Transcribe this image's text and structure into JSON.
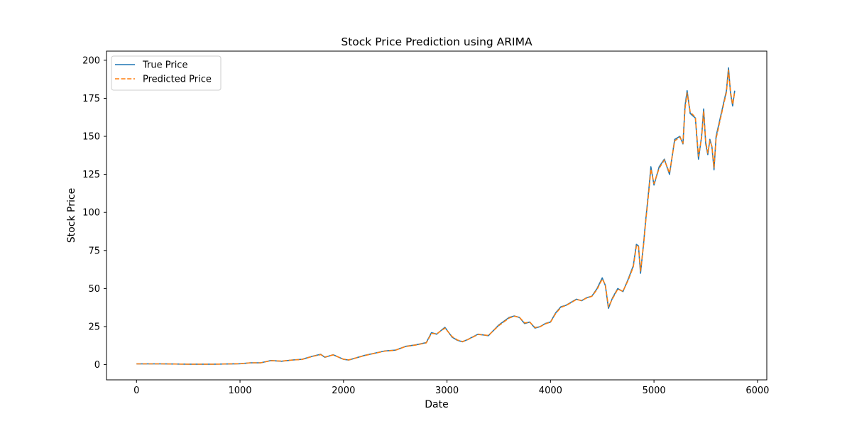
{
  "chart_data": {
    "type": "line",
    "title": "Stock Price Prediction using ARIMA",
    "xlabel": "Date",
    "ylabel": "Stock Price",
    "xlim": [
      -290,
      6090
    ],
    "ylim": [
      -10,
      206
    ],
    "xticks": [
      0,
      1000,
      2000,
      3000,
      4000,
      5000,
      6000
    ],
    "yticks": [
      0,
      25,
      50,
      75,
      100,
      125,
      150,
      175,
      200
    ],
    "grid": false,
    "legend_position": "top-left",
    "series": [
      {
        "name": "True Price",
        "color": "#1f77b4",
        "style": "solid",
        "x": [
          0,
          250,
          500,
          750,
          1000,
          1100,
          1200,
          1300,
          1400,
          1500,
          1600,
          1700,
          1780,
          1820,
          1900,
          2000,
          2050,
          2200,
          2300,
          2400,
          2500,
          2600,
          2700,
          2800,
          2850,
          2900,
          2980,
          3050,
          3100,
          3150,
          3200,
          3300,
          3400,
          3500,
          3600,
          3650,
          3700,
          3750,
          3800,
          3850,
          3900,
          3950,
          4000,
          4050,
          4100,
          4150,
          4200,
          4250,
          4300,
          4350,
          4400,
          4450,
          4500,
          4530,
          4560,
          4600,
          4650,
          4700,
          4750,
          4800,
          4830,
          4850,
          4870,
          4900,
          4920,
          4950,
          4970,
          5000,
          5050,
          5100,
          5150,
          5200,
          5250,
          5280,
          5300,
          5320,
          5350,
          5400,
          5430,
          5460,
          5480,
          5500,
          5520,
          5540,
          5560,
          5580,
          5600,
          5650,
          5700,
          5720,
          5740,
          5760,
          5780
        ],
        "y": [
          0.5,
          0.5,
          0.3,
          0.3,
          0.6,
          1.2,
          1.2,
          2.7,
          2.2,
          3.0,
          3.5,
          5.5,
          6.8,
          4.8,
          6.5,
          3.5,
          3.0,
          6.0,
          7.5,
          9.0,
          9.5,
          12.0,
          13.0,
          14.5,
          21.0,
          20.0,
          24.5,
          18.0,
          16.0,
          15.0,
          16.5,
          20.0,
          19.0,
          26.0,
          31.0,
          32.0,
          31.0,
          27.0,
          28.0,
          24.0,
          25.0,
          27.0,
          28.0,
          34.0,
          38.0,
          39.0,
          41.0,
          43.0,
          42.0,
          44.0,
          45.0,
          50.0,
          57.0,
          52.0,
          37.0,
          44.0,
          50.0,
          48.0,
          56.0,
          65.0,
          79.0,
          78.0,
          60.0,
          80.0,
          95.0,
          115.0,
          130.0,
          118.0,
          130.0,
          135.0,
          125.0,
          148.0,
          150.0,
          145.0,
          170.0,
          180.0,
          165.0,
          162.0,
          135.0,
          150.0,
          168.0,
          145.0,
          138.0,
          148.0,
          143.0,
          128.0,
          150.0,
          165.0,
          180.0,
          195.0,
          178.0,
          170.0,
          180.0
        ]
      },
      {
        "name": "Predicted Price",
        "color": "#ff7f0e",
        "style": "dashed",
        "x": [
          0,
          250,
          500,
          750,
          1000,
          1100,
          1200,
          1300,
          1400,
          1500,
          1600,
          1700,
          1780,
          1820,
          1900,
          2000,
          2050,
          2200,
          2300,
          2400,
          2500,
          2600,
          2700,
          2800,
          2850,
          2900,
          2980,
          3050,
          3100,
          3150,
          3200,
          3300,
          3400,
          3500,
          3600,
          3650,
          3700,
          3750,
          3800,
          3850,
          3900,
          3950,
          4000,
          4050,
          4100,
          4150,
          4200,
          4250,
          4300,
          4350,
          4400,
          4450,
          4500,
          4530,
          4560,
          4600,
          4650,
          4700,
          4750,
          4800,
          4830,
          4850,
          4870,
          4900,
          4920,
          4950,
          4970,
          5000,
          5050,
          5100,
          5150,
          5200,
          5250,
          5280,
          5300,
          5320,
          5350,
          5400,
          5430,
          5460,
          5480,
          5500,
          5520,
          5540,
          5560,
          5580,
          5600,
          5650,
          5700,
          5720,
          5740,
          5760,
          5780
        ],
        "y": [
          0.5,
          0.5,
          0.3,
          0.3,
          0.6,
          1.2,
          1.2,
          2.6,
          2.3,
          3.0,
          3.4,
          5.4,
          6.6,
          5.0,
          6.4,
          3.6,
          3.1,
          5.9,
          7.4,
          8.9,
          9.4,
          11.9,
          12.9,
          14.3,
          20.5,
          20.2,
          24.0,
          18.4,
          16.2,
          15.2,
          16.4,
          19.8,
          19.2,
          25.6,
          30.6,
          31.8,
          31.1,
          27.4,
          27.9,
          24.4,
          24.9,
          26.8,
          27.9,
          33.5,
          37.6,
          38.9,
          40.7,
          42.8,
          42.1,
          43.8,
          44.9,
          49.4,
          56.3,
          52.4,
          38.0,
          43.4,
          49.6,
          48.2,
          55.4,
          64.2,
          78.0,
          78.2,
          61.5,
          79.0,
          94.0,
          113.5,
          128.5,
          119.0,
          129.0,
          134.5,
          126.0,
          147.0,
          149.5,
          145.5,
          168.0,
          178.5,
          166.0,
          162.5,
          137.0,
          149.0,
          166.5,
          146.5,
          139.0,
          147.0,
          143.5,
          129.5,
          148.5,
          164.0,
          179.0,
          193.5,
          179.0,
          171.0,
          179.0
        ]
      }
    ]
  }
}
